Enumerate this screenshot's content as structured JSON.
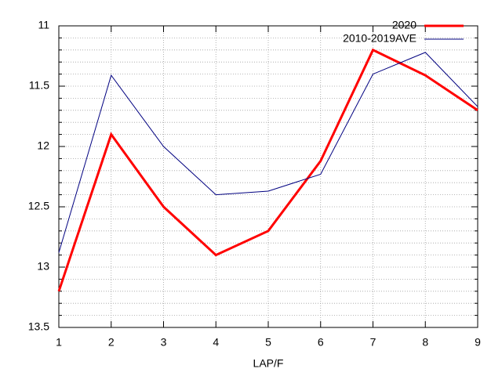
{
  "chart_data": {
    "type": "line",
    "x_label": "LAP/F",
    "x": [
      1,
      2,
      3,
      4,
      5,
      6,
      7,
      8,
      9
    ],
    "series": [
      {
        "name": "2020",
        "color": "#ff0000",
        "width": 3,
        "values": [
          13.2,
          11.9,
          12.5,
          12.9,
          12.7,
          12.12,
          11.2,
          11.41,
          11.7
        ]
      },
      {
        "name": "2010-2019AVE",
        "color": "#000080",
        "width": 1,
        "values": [
          12.88,
          11.41,
          12.0,
          12.4,
          12.37,
          12.23,
          11.4,
          11.22,
          11.67
        ]
      }
    ],
    "xlim": [
      1,
      9
    ],
    "xticks": [
      1,
      2,
      3,
      4,
      5,
      6,
      7,
      8,
      9
    ],
    "ylim": [
      11,
      13.5
    ],
    "yticks": [
      11,
      11.5,
      12,
      12.5,
      13,
      13.5
    ],
    "y_reversed": true,
    "y_minor_intervals": 5,
    "grid": true,
    "legend": "top-right"
  }
}
